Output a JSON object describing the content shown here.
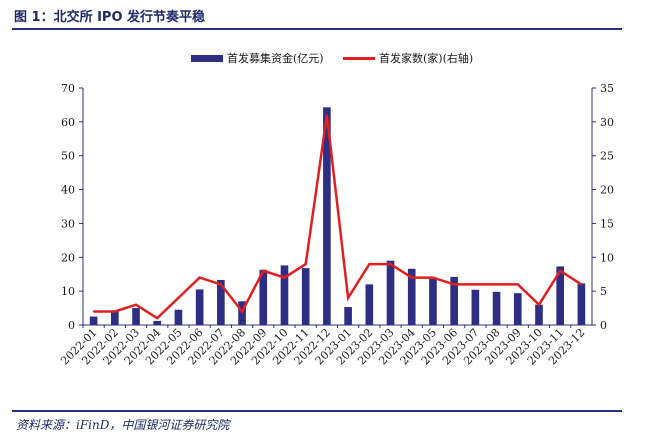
{
  "figure": {
    "title": "图 1：北交所 IPO 发行节奏平稳",
    "source": "资料来源：iFinD，中国银河证券研究院"
  },
  "colors": {
    "bar": "#2e2e84",
    "line": "#e02020",
    "axis": "#2b2f7a",
    "rule": "#2b2f7a"
  },
  "chart_data": {
    "type": "bar",
    "categories": [
      "2022-01",
      "2022-02",
      "2022-03",
      "2022-04",
      "2022-05",
      "2022-06",
      "2022-07",
      "2022-08",
      "2022-09",
      "2022-10",
      "2022-11",
      "2022-12",
      "2023-01",
      "2023-02",
      "2023-03",
      "2023-04",
      "2023-05",
      "2023-06",
      "2023-07",
      "2023-08",
      "2023-09",
      "2023-10",
      "2023-11",
      "2023-12"
    ],
    "series": [
      {
        "name": "首发募集资金(亿元)",
        "type": "bar",
        "axis": "left",
        "values": [
          2.5,
          4,
          5,
          1.2,
          4.5,
          10.5,
          13.3,
          7,
          16.3,
          17.6,
          16.8,
          64.3,
          5.3,
          12,
          19,
          16.6,
          13.6,
          14.2,
          10.4,
          9.8,
          9.4,
          6,
          17.3,
          12.3
        ]
      },
      {
        "name": "首发家数(家)(右轴)",
        "type": "line",
        "axis": "right",
        "values": [
          2,
          2,
          3,
          1,
          4,
          7,
          6,
          2,
          8,
          7,
          9,
          31,
          4,
          9,
          9,
          7,
          7,
          6,
          6,
          6,
          6,
          3,
          8,
          6
        ]
      }
    ],
    "y_left": {
      "min": 0,
      "max": 70,
      "ticks": [
        "0",
        "10",
        "20",
        "30",
        "40",
        "50",
        "60",
        "70"
      ]
    },
    "y_right": {
      "min": 0,
      "max": 35,
      "ticks": [
        "0",
        "5",
        "10",
        "15",
        "20",
        "25",
        "30",
        "35"
      ]
    },
    "legend_position": "top-center",
    "grid": false
  }
}
